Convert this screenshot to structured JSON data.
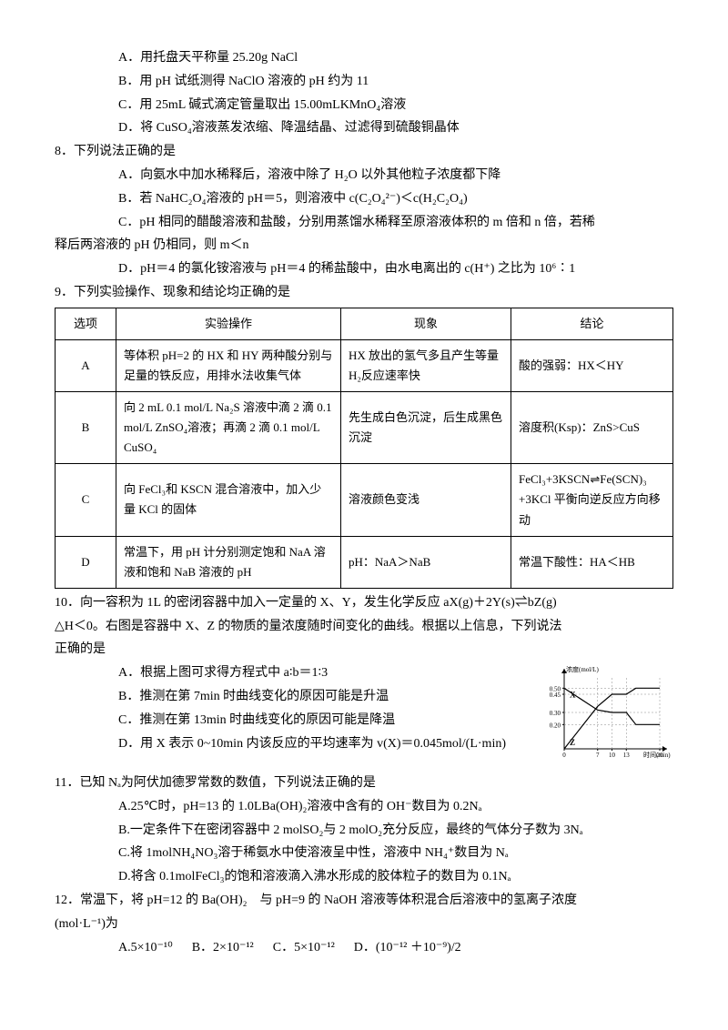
{
  "q7": {
    "A": "A．用托盘天平称量 25.20g NaCl",
    "B": "B．用 pH 试纸测得 NaClO 溶液的 pH 约为 11",
    "C": "C．用 25mL 碱式滴定管量取出 15.00mLKMnO₄溶液",
    "D": "D．将 CuSO₄溶液蒸发浓缩、降温结晶、过滤得到硫酸铜晶体"
  },
  "q8": {
    "stem": "8．下列说法正确的是",
    "A": "A．向氨水中加水稀释后，溶液中除了 H₂O 以外其他粒子浓度都下降",
    "B": "B．若 NaHC₂O₄溶液的 pH＝5，则溶液中 c(C₂O₄²⁻)＜c(H₂C₂O₄)",
    "C": "C．pH 相同的醋酸溶液和盐酸，分别用蒸馏水稀释至原溶液体积的 m 倍和 n 倍，若稀",
    "C2": "释后两溶液的 pH 仍相同，则 m＜n",
    "D": "D．pH＝4 的氯化铵溶液与 pH＝4 的稀盐酸中，由水电离出的 c(H⁺) 之比为 10⁶∶1"
  },
  "q9": {
    "stem": "9．下列实验操作、现象和结论均正确的是",
    "head": [
      "选项",
      "实验操作",
      "现象",
      "结论"
    ],
    "rows": [
      {
        "opt": "A",
        "op": "等体积 pH=2 的 HX 和 HY 两种酸分别与足量的铁反应，用排水法收集气体",
        "ph": "HX 放出的氢气多且产生等量 H₂反应速率快",
        "con": "酸的强弱：HX＜HY"
      },
      {
        "opt": "B",
        "op": "向 2 mL 0.1 mol/L Na₂S 溶液中滴 2 滴 0.1 mol/L ZnSO₄溶液；再滴 2 滴 0.1 mol/L CuSO₄",
        "ph": "先生成白色沉淀，后生成黑色沉淀",
        "con": "溶度积(Ksp)：ZnS>CuS"
      },
      {
        "opt": "C",
        "op": "向 FeCl₃和 KSCN 混合溶液中，加入少量 KCl 的固体",
        "ph": "溶液颜色变浅",
        "con": "FeCl₃+3KSCN⇌Fe(SCN)₃　+3KCl 平衡向逆反应方向移动"
      },
      {
        "opt": "D",
        "op": "常温下，用 pH 计分别测定饱和 NaA 溶液和饱和 NaB 溶液的 pH",
        "ph": "pH：NaA＞NaB",
        "con": "常温下酸性：HA＜HB"
      }
    ]
  },
  "q10": {
    "stem1": "10．向一容积为 1L 的密闭容器中加入一定量的 X、Y，发生化学反应 aX(g)＋2Y(s)⇌bZ(g)",
    "stem2": "△H＜0。右图是容器中 X、Z 的物质的量浓度随时间变化的曲线。根据以上信息，下列说法",
    "stem3": "正确的是",
    "A": "A．根据上图可求得方程式中 a∶b＝1∶3",
    "B": "B．推测在第 7min 时曲线变化的原因可能是升温",
    "C": "C．推测在第 13min 时曲线变化的原因可能是降温",
    "D": "D．用 X 表示 0~10min 内该反应的平均速率为 v(X)＝0.045mol/(L·min)",
    "chart": {
      "type": "line",
      "ylabel": "浓度(mol/L)",
      "xlabel": "时间(min)",
      "yticks": [
        0.2,
        0.3,
        0.45,
        0.5
      ],
      "xticks": [
        0,
        7,
        10,
        13,
        20
      ],
      "series": [
        {
          "name": "X",
          "color": "#000",
          "points": [
            [
              0,
              0.5
            ],
            [
              7,
              0.32
            ],
            [
              10,
              0.3
            ],
            [
              13,
              0.3
            ],
            [
              15,
              0.2
            ],
            [
              20,
              0.2
            ]
          ]
        },
        {
          "name": "Z",
          "color": "#000",
          "points": [
            [
              0,
              0
            ],
            [
              7,
              0.35
            ],
            [
              10,
              0.45
            ],
            [
              13,
              0.45
            ],
            [
              15,
              0.5
            ],
            [
              20,
              0.5
            ]
          ]
        }
      ],
      "background": "#ffffff",
      "axis_color": "#000",
      "gridline": "dashed"
    }
  },
  "q11": {
    "stem": "11．已知 Nₐ为阿伏加德罗常数的数值，下列说法正确的是",
    "A": "A.25℃时，pH=13 的 1.0LBa(OH)₂溶液中含有的 OH⁻数目为 0.2Nₐ",
    "B": "B.一定条件下在密闭容器中 2 molSO₂与 2 molO₂充分反应，最终的气体分子数为 3Nₐ",
    "C": "C.将 1molNH₄NO₃溶于稀氨水中使溶液呈中性，溶液中 NH₄⁺数目为 Nₐ",
    "D": "D.将含 0.1molFeCl₃的饱和溶液滴入沸水形成的胶体粒子的数目为 0.1Nₐ"
  },
  "q12": {
    "stem1": "12．常温下，将 pH=12 的 Ba(OH)₂　与 pH=9 的 NaOH 溶液等体积混合后溶液中的氢离子浓度",
    "stem2": "(mol·L⁻¹)为",
    "A": "A.5×10⁻¹⁰",
    "B": "B．2×10⁻¹²",
    "C": "C．5×10⁻¹²",
    "D": "D．(10⁻¹² ＋10⁻⁹)/2"
  }
}
